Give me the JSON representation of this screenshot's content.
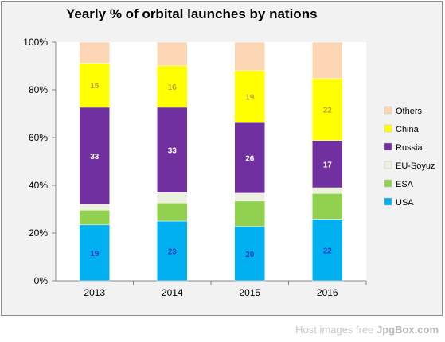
{
  "chart_data": {
    "type": "bar",
    "stacked": true,
    "title": "Yearly % of orbital launches by nations",
    "xlabel": "",
    "ylabel": "",
    "categories": [
      "2013",
      "2014",
      "2015",
      "2016"
    ],
    "ylim": [
      0,
      100
    ],
    "yticks": [
      "0%",
      "20%",
      "40%",
      "60%",
      "80%",
      "100%"
    ],
    "legend_position": "right",
    "series": [
      {
        "name": "USA",
        "color": "#00b0f0",
        "values": [
          23.4,
          25.0,
          22.7,
          25.8
        ],
        "labels": [
          "19",
          "23",
          "20",
          "22"
        ],
        "label_color": "#1f3fbf"
      },
      {
        "name": "ESA",
        "color": "#92d050",
        "values": [
          6.2,
          7.6,
          10.7,
          10.8
        ],
        "labels": [
          "",
          "",
          "",
          ""
        ],
        "label_color": "#000000"
      },
      {
        "name": "EU-Soyuz",
        "color": "#ebf1de",
        "values": [
          2.5,
          4.3,
          3.3,
          2.4
        ],
        "labels": [
          "",
          "",
          "",
          ""
        ],
        "label_color": "#000000"
      },
      {
        "name": "Russia",
        "color": "#7030a0",
        "values": [
          40.6,
          35.8,
          29.6,
          19.8
        ],
        "labels": [
          "33",
          "33",
          "26",
          "17"
        ],
        "label_color": "#ffffff"
      },
      {
        "name": "China",
        "color": "#ffff00",
        "values": [
          18.5,
          17.4,
          21.8,
          26.0
        ],
        "labels": [
          "15",
          "16",
          "19",
          "22"
        ],
        "label_color": "#c0a030"
      },
      {
        "name": "Others",
        "color": "#fcd5b4",
        "values": [
          8.8,
          9.9,
          11.9,
          15.2
        ],
        "labels": [
          "",
          "",
          "",
          ""
        ],
        "label_color": "#000000"
      }
    ]
  },
  "footer": {
    "prefix": "Host images free ",
    "brand": "JpgBox.com"
  }
}
